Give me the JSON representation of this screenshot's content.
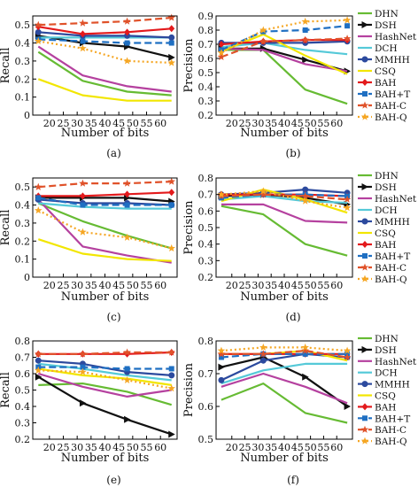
{
  "series_styles": [
    {
      "name": "DHN",
      "color": "#66bb33",
      "dash": "",
      "marker": "none"
    },
    {
      "name": "DSH",
      "color": "#111111",
      "dash": "",
      "marker": "tri-right"
    },
    {
      "name": "HashNet",
      "color": "#b5419f",
      "dash": "",
      "marker": "none"
    },
    {
      "name": "DCH",
      "color": "#55c9d8",
      "dash": "",
      "marker": "none"
    },
    {
      "name": "MMHH",
      "color": "#2c4a9e",
      "dash": "",
      "marker": "circle"
    },
    {
      "name": "CSQ",
      "color": "#f2e600",
      "dash": "",
      "marker": "none"
    },
    {
      "name": "BAH",
      "color": "#e31a1c",
      "dash": "",
      "marker": "diamond"
    },
    {
      "name": "BAH+T",
      "color": "#1f6fc2",
      "dash": "8,4",
      "marker": "square"
    },
    {
      "name": "BAH-C",
      "color": "#e0522a",
      "dash": "8,4",
      "marker": "star"
    },
    {
      "name": "BAH-Q",
      "color": "#f5a623",
      "dash": "2,3",
      "marker": "star"
    }
  ],
  "chart_data": [
    {
      "id": "a",
      "caption": "(a)",
      "type": "line",
      "xlabel": "Number of bits",
      "ylabel": "Recall",
      "x": [
        16,
        32,
        48,
        64
      ],
      "xlim": [
        14,
        66
      ],
      "xticks": [
        20,
        25,
        30,
        35,
        40,
        45,
        50,
        55,
        60
      ],
      "ylim": [
        0.0,
        0.55
      ],
      "yticks": [
        0.0,
        0.1,
        0.2,
        0.3,
        0.4,
        0.5
      ],
      "ytick_labels": [
        "0",
        "0.1",
        "0.2",
        "0.3",
        "0.4",
        "0.5"
      ],
      "legend": false,
      "series": [
        {
          "name": "DHN",
          "values": [
            0.35,
            0.19,
            0.13,
            0.11
          ]
        },
        {
          "name": "DSH",
          "values": [
            0.44,
            0.4,
            0.38,
            0.32
          ]
        },
        {
          "name": "HashNet",
          "values": [
            0.38,
            0.22,
            0.16,
            0.13
          ]
        },
        {
          "name": "DCH",
          "values": [
            0.43,
            0.43,
            0.43,
            0.43
          ]
        },
        {
          "name": "MMHH",
          "values": [
            0.46,
            0.44,
            0.44,
            0.43
          ]
        },
        {
          "name": "CSQ",
          "values": [
            0.2,
            0.11,
            0.08,
            0.08
          ]
        },
        {
          "name": "BAH",
          "values": [
            0.49,
            0.45,
            0.46,
            0.48
          ]
        },
        {
          "name": "BAH+T",
          "values": [
            0.42,
            0.41,
            0.4,
            0.4
          ]
        },
        {
          "name": "BAH-C",
          "values": [
            0.5,
            0.51,
            0.52,
            0.54
          ]
        },
        {
          "name": "BAH-Q",
          "values": [
            0.41,
            0.37,
            0.3,
            0.29
          ]
        }
      ]
    },
    {
      "id": "b",
      "caption": "(b)",
      "type": "line",
      "xlabel": "Number of bits",
      "ylabel": "Precision",
      "x": [
        16,
        32,
        48,
        64
      ],
      "xlim": [
        14,
        66
      ],
      "xticks": [
        20,
        25,
        30,
        35,
        40,
        45,
        50,
        55,
        60
      ],
      "ylim": [
        0.2,
        0.9
      ],
      "yticks": [
        0.2,
        0.3,
        0.4,
        0.5,
        0.6,
        0.7,
        0.8,
        0.9
      ],
      "ytick_labels": [
        "0.2",
        "0.3",
        "0.4",
        "0.5",
        "0.6",
        "0.7",
        "0.8",
        "0.9"
      ],
      "legend": true,
      "legend_position": "right",
      "series": [
        {
          "name": "DHN",
          "values": [
            0.66,
            0.66,
            0.38,
            0.28
          ]
        },
        {
          "name": "DSH",
          "values": [
            0.67,
            0.67,
            0.59,
            0.51
          ]
        },
        {
          "name": "HashNet",
          "values": [
            0.67,
            0.66,
            0.56,
            0.51
          ]
        },
        {
          "name": "DCH",
          "values": [
            0.68,
            0.71,
            0.66,
            0.63
          ]
        },
        {
          "name": "MMHH",
          "values": [
            0.71,
            0.71,
            0.71,
            0.72
          ]
        },
        {
          "name": "CSQ",
          "values": [
            0.65,
            0.77,
            0.62,
            0.49
          ]
        },
        {
          "name": "BAH",
          "values": [
            0.7,
            0.72,
            0.73,
            0.73
          ]
        },
        {
          "name": "BAH+T",
          "values": [
            0.66,
            0.79,
            0.8,
            0.83
          ]
        },
        {
          "name": "BAH-C",
          "values": [
            0.61,
            0.72,
            0.73,
            0.74
          ]
        },
        {
          "name": "BAH-Q",
          "values": [
            0.64,
            0.8,
            0.86,
            0.87
          ]
        }
      ]
    },
    {
      "id": "c",
      "caption": "(c)",
      "type": "line",
      "xlabel": "Number of bits",
      "ylabel": "Recall",
      "x": [
        16,
        32,
        48,
        64
      ],
      "xlim": [
        14,
        66
      ],
      "xticks": [
        20,
        25,
        30,
        35,
        40,
        45,
        50,
        55,
        60
      ],
      "ylim": [
        0.0,
        0.55
      ],
      "yticks": [
        0.0,
        0.1,
        0.2,
        0.3,
        0.4,
        0.5
      ],
      "ytick_labels": [
        "0",
        "0.1",
        "0.2",
        "0.3",
        "0.4",
        "0.5"
      ],
      "legend": false,
      "series": [
        {
          "name": "DHN",
          "values": [
            0.41,
            0.31,
            0.23,
            0.16
          ]
        },
        {
          "name": "DSH",
          "values": [
            0.44,
            0.44,
            0.44,
            0.42
          ]
        },
        {
          "name": "HashNet",
          "values": [
            0.43,
            0.17,
            0.12,
            0.08
          ]
        },
        {
          "name": "DCH",
          "values": [
            0.41,
            0.39,
            0.38,
            0.38
          ]
        },
        {
          "name": "MMHH",
          "values": [
            0.43,
            0.41,
            0.41,
            0.4
          ]
        },
        {
          "name": "CSQ",
          "values": [
            0.21,
            0.13,
            0.1,
            0.09
          ]
        },
        {
          "name": "BAH",
          "values": [
            0.45,
            0.45,
            0.46,
            0.47
          ]
        },
        {
          "name": "BAH+T",
          "values": [
            0.44,
            0.4,
            0.4,
            0.4
          ]
        },
        {
          "name": "BAH-C",
          "values": [
            0.5,
            0.52,
            0.52,
            0.53
          ]
        },
        {
          "name": "BAH-Q",
          "values": [
            0.37,
            0.25,
            0.22,
            0.16
          ]
        }
      ]
    },
    {
      "id": "d",
      "caption": "(d)",
      "type": "line",
      "xlabel": "Number of bits",
      "ylabel": "Precision",
      "x": [
        16,
        32,
        48,
        64
      ],
      "xlim": [
        14,
        66
      ],
      "xticks": [
        20,
        25,
        30,
        35,
        40,
        45,
        50,
        55,
        60
      ],
      "ylim": [
        0.2,
        0.8
      ],
      "yticks": [
        0.2,
        0.3,
        0.4,
        0.5,
        0.6,
        0.7,
        0.8
      ],
      "ytick_labels": [
        "0.2",
        "0.3",
        "0.4",
        "0.5",
        "0.6",
        "0.7",
        "0.8"
      ],
      "legend": true,
      "legend_position": "right",
      "series": [
        {
          "name": "DHN",
          "values": [
            0.63,
            0.58,
            0.4,
            0.33
          ]
        },
        {
          "name": "DSH",
          "values": [
            0.69,
            0.7,
            0.68,
            0.64
          ]
        },
        {
          "name": "HashNet",
          "values": [
            0.64,
            0.64,
            0.54,
            0.53
          ]
        },
        {
          "name": "DCH",
          "values": [
            0.67,
            0.69,
            0.66,
            0.65
          ]
        },
        {
          "name": "MMHH",
          "values": [
            0.7,
            0.71,
            0.73,
            0.71
          ]
        },
        {
          "name": "CSQ",
          "values": [
            0.66,
            0.73,
            0.67,
            0.59
          ]
        },
        {
          "name": "BAH",
          "values": [
            0.7,
            0.7,
            0.7,
            0.69
          ]
        },
        {
          "name": "BAH+T",
          "values": [
            0.68,
            0.7,
            0.7,
            0.69
          ]
        },
        {
          "name": "BAH-C",
          "values": [
            0.69,
            0.7,
            0.69,
            0.67
          ]
        },
        {
          "name": "BAH-Q",
          "values": [
            0.7,
            0.72,
            0.66,
            0.62
          ]
        }
      ]
    },
    {
      "id": "e",
      "caption": "(e)",
      "type": "line",
      "xlabel": "Number of bits",
      "ylabel": "Recall",
      "x": [
        16,
        32,
        48,
        64
      ],
      "xlim": [
        14,
        66
      ],
      "xticks": [
        20,
        25,
        30,
        35,
        40,
        45,
        50,
        55,
        60
      ],
      "ylim": [
        0.2,
        0.8
      ],
      "yticks": [
        0.2,
        0.3,
        0.4,
        0.5,
        0.6,
        0.7,
        0.8
      ],
      "ytick_labels": [
        "0.2",
        "0.3",
        "0.4",
        "0.5",
        "0.6",
        "0.7",
        "0.8"
      ],
      "legend": false,
      "series": [
        {
          "name": "DHN",
          "values": [
            0.53,
            0.54,
            0.49,
            0.41
          ]
        },
        {
          "name": "DSH",
          "values": [
            0.58,
            0.42,
            0.32,
            0.23
          ]
        },
        {
          "name": "HashNet",
          "values": [
            0.6,
            0.52,
            0.46,
            0.5
          ]
        },
        {
          "name": "DCH",
          "values": [
            0.66,
            0.63,
            0.59,
            0.56
          ]
        },
        {
          "name": "MMHH",
          "values": [
            0.68,
            0.66,
            0.61,
            0.59
          ]
        },
        {
          "name": "CSQ",
          "values": [
            0.63,
            0.59,
            0.57,
            0.53
          ]
        },
        {
          "name": "BAH",
          "values": [
            0.72,
            0.72,
            0.72,
            0.73
          ]
        },
        {
          "name": "BAH+T",
          "values": [
            0.64,
            0.64,
            0.63,
            0.63
          ]
        },
        {
          "name": "BAH-C",
          "values": [
            0.72,
            0.72,
            0.73,
            0.73
          ]
        },
        {
          "name": "BAH-Q",
          "values": [
            0.62,
            0.61,
            0.56,
            0.51
          ]
        }
      ]
    },
    {
      "id": "f",
      "caption": "(f)",
      "type": "line",
      "xlabel": "Number of bits",
      "ylabel": "Precision",
      "x": [
        16,
        32,
        48,
        64
      ],
      "xlim": [
        14,
        66
      ],
      "xticks": [
        20,
        25,
        30,
        35,
        40,
        45,
        50,
        55,
        60
      ],
      "ylim": [
        0.5,
        0.8
      ],
      "yticks": [
        0.5,
        0.6,
        0.7,
        0.8
      ],
      "ytick_labels": [
        "0.5",
        "0.6",
        "0.7",
        "0.8"
      ],
      "legend": true,
      "legend_position": "right",
      "series": [
        {
          "name": "DHN",
          "values": [
            0.62,
            0.67,
            0.58,
            0.55
          ]
        },
        {
          "name": "DSH",
          "values": [
            0.72,
            0.75,
            0.69,
            0.6
          ]
        },
        {
          "name": "HashNet",
          "values": [
            0.66,
            0.7,
            0.66,
            0.61
          ]
        },
        {
          "name": "DCH",
          "values": [
            0.67,
            0.71,
            0.73,
            0.73
          ]
        },
        {
          "name": "MMHH",
          "values": [
            0.68,
            0.74,
            0.76,
            0.75
          ]
        },
        {
          "name": "CSQ",
          "values": [
            0.76,
            0.76,
            0.77,
            0.74
          ]
        },
        {
          "name": "BAH",
          "values": [
            0.76,
            0.76,
            0.76,
            0.76
          ]
        },
        {
          "name": "BAH+T",
          "values": [
            0.75,
            0.76,
            0.76,
            0.76
          ]
        },
        {
          "name": "BAH-C",
          "values": [
            0.76,
            0.76,
            0.77,
            0.75
          ]
        },
        {
          "name": "BAH-Q",
          "values": [
            0.77,
            0.78,
            0.78,
            0.77
          ]
        }
      ]
    }
  ]
}
